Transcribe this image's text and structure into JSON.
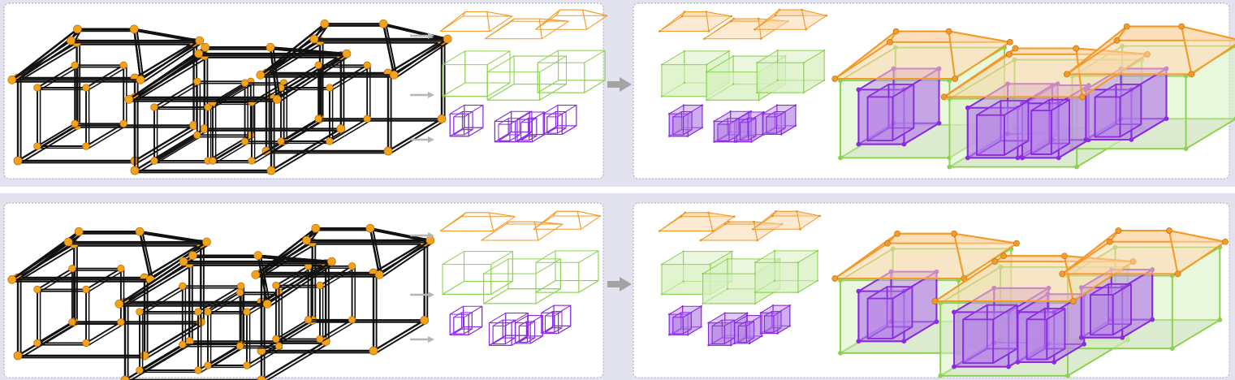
{
  "colors": {
    "band": "#e3e3ef",
    "panel_bg": "#ffffff",
    "panel_border": "#a7a7bb",
    "wire": "#111111",
    "joint": "#f3a21c",
    "roof": "#f39a2a",
    "roof_fill": "#fbd6a6",
    "wall": "#8dd24f",
    "wall_fill": "#d9f0c3",
    "room": "#8a2be2",
    "room_fill": "#b98ae6",
    "floor_fill": "#c9cdd2",
    "arrow_small": "#b5b5b5",
    "arrow_big": "#a3a3a3"
  },
  "rows": [
    {
      "id": "row-1",
      "wireframe_icon": "wireframe-house-icon",
      "roof_part_icon": "roof-structure-icon",
      "wall_part_icon": "wall-structure-icon",
      "room_part_icon": "room-structure-icon",
      "result_icon": "assembled-house-icon"
    },
    {
      "id": "row-2",
      "wireframe_icon": "wireframe-house-icon",
      "roof_part_icon": "roof-structure-icon",
      "wall_part_icon": "wall-structure-icon",
      "room_part_icon": "room-structure-icon",
      "result_icon": "assembled-house-icon"
    }
  ]
}
